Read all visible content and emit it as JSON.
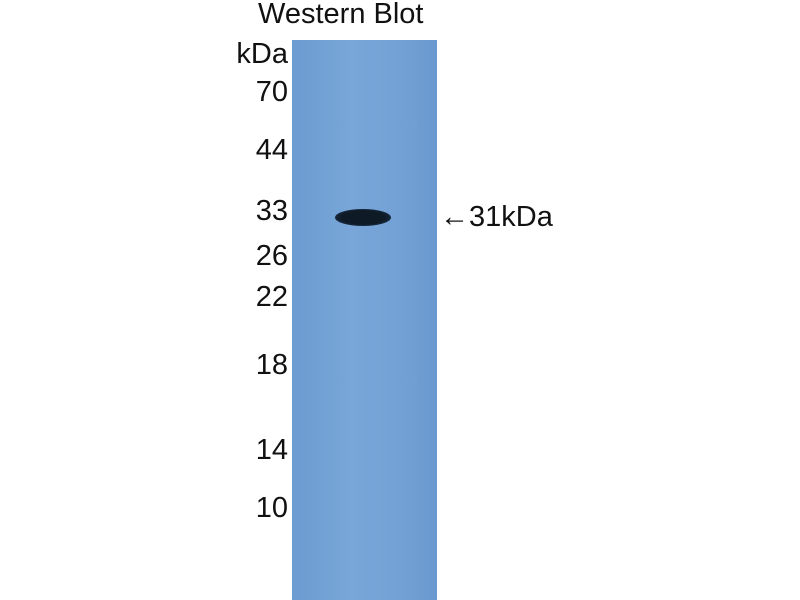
{
  "title": "Western Blot",
  "unit_label": "kDa",
  "markers": [
    "70",
    "44",
    "33",
    "26",
    "22",
    "18",
    "14",
    "10"
  ],
  "band_annotation": "←31kDa",
  "colors": {
    "membrane": "#74a2d6",
    "band": "#0e1a26"
  }
}
